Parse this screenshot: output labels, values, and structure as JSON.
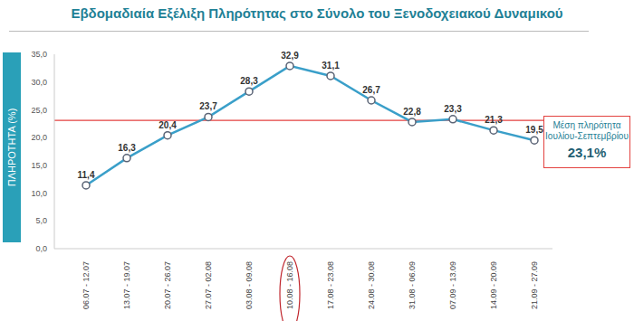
{
  "chart_data": {
    "type": "line",
    "title": "Εβδομαδιαία Εξέλιξη Πληρότητας στο Σύνολο του Ξενοδοχειακού Δυναμικού",
    "y_label": "ΠΛΗΡΟΤΗΤΑ (%)",
    "categories": [
      "06.07 - 12.07",
      "13.07 - 19.07",
      "20.07 - 26.07",
      "27.07 - 02.08",
      "03.08 - 09.08",
      "10.08 - 16.08",
      "17.08 - 23.08",
      "24.08 - 30.08",
      "31.08 - 06.09",
      "07.09 - 13.09",
      "14.09 - 20.09",
      "21.09 - 27.09"
    ],
    "values": [
      11.4,
      16.3,
      20.4,
      23.7,
      28.3,
      32.9,
      31.1,
      26.7,
      22.8,
      23.3,
      21.3,
      19.5
    ],
    "value_labels": [
      "11,4",
      "16,3",
      "20,4",
      "23,7",
      "28,3",
      "32,9",
      "31,1",
      "26,7",
      "22,8",
      "23,3",
      "21,3",
      "19,5"
    ],
    "color": "#3a9fc9",
    "marker": "circle",
    "ylim": [
      0,
      35
    ],
    "yticks": [
      {
        "value": 0,
        "label": "0,0"
      },
      {
        "value": 5,
        "label": "5,0"
      },
      {
        "value": 10,
        "label": "10,0"
      },
      {
        "value": 15,
        "label": "15,0"
      },
      {
        "value": 20,
        "label": "20,0"
      },
      {
        "value": 25,
        "label": "25,0"
      },
      {
        "value": 30,
        "label": "30,0"
      },
      {
        "value": 35,
        "label": "35,0"
      }
    ],
    "grid": false,
    "data_labels": true,
    "reference_line": {
      "value": 23.1,
      "label": "23,1%",
      "text": [
        "Μέση πληρότητα",
        "Ιουλίου-Σεπτεμβρίου"
      ],
      "color": "#e3413f"
    }
  }
}
